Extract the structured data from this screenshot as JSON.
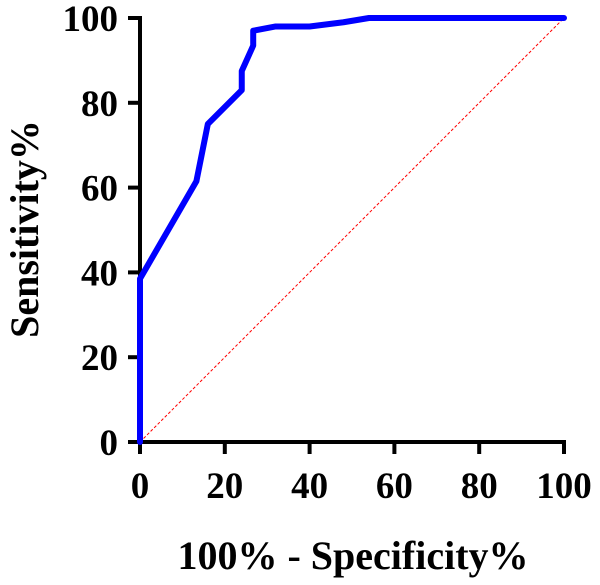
{
  "chart_data": {
    "type": "line",
    "title": "",
    "xlabel": "100% - Specificity%",
    "ylabel": "Sensitivity%",
    "xlim": [
      0,
      100
    ],
    "ylim": [
      0,
      100
    ],
    "xticks": [
      0,
      20,
      40,
      60,
      80,
      100
    ],
    "yticks": [
      0,
      20,
      40,
      60,
      80,
      100
    ],
    "grid": false,
    "legend": "none",
    "series": [
      {
        "color": "#0000ff",
        "style": "solid",
        "x": [
          0,
          0,
          13.3,
          16,
          24,
          24,
          26.7,
          26.7,
          32,
          40,
          48,
          54,
          100
        ],
        "y": [
          0,
          38.5,
          61.5,
          75,
          83,
          87.5,
          93.5,
          97,
          98,
          98,
          99,
          100,
          100
        ]
      },
      {
        "color": "#ff0000",
        "style": "dashed",
        "x": [
          0,
          100
        ],
        "y": [
          0,
          100
        ]
      }
    ]
  }
}
